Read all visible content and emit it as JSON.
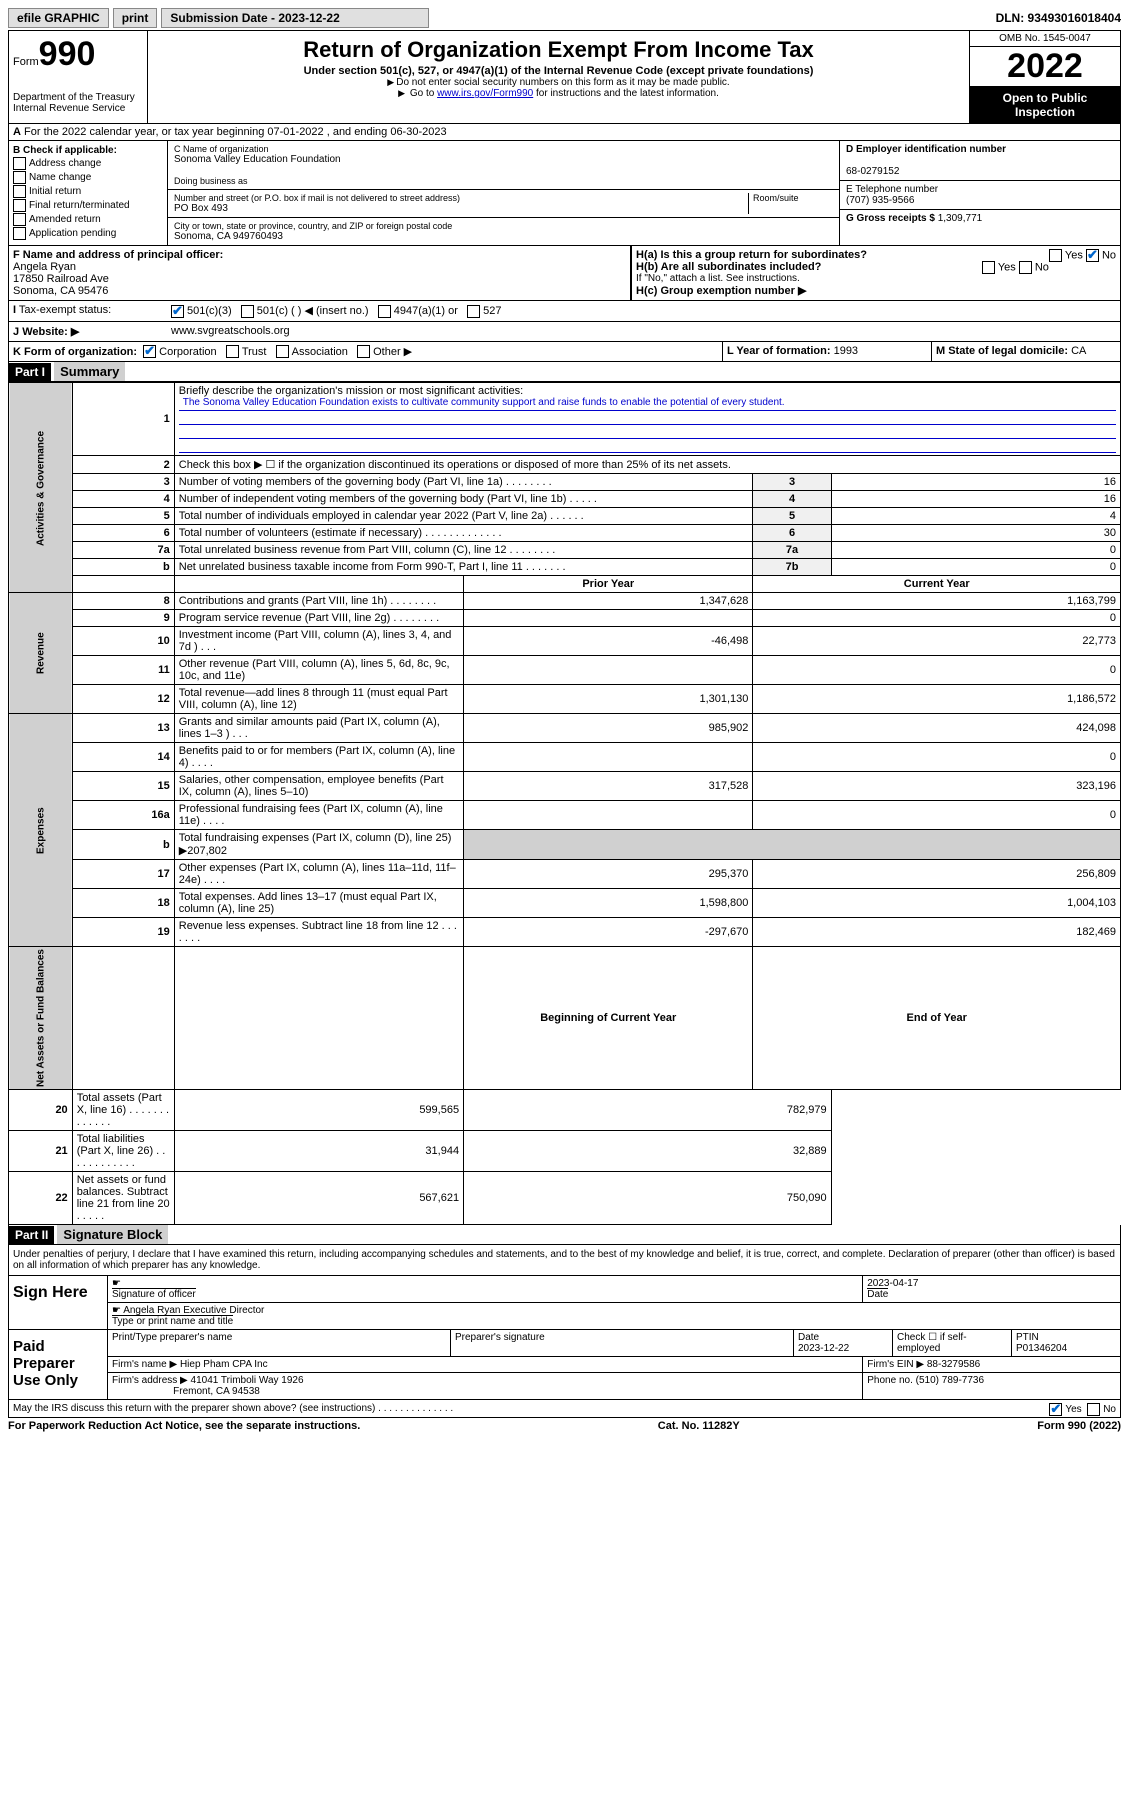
{
  "topbar": {
    "efile": "efile GRAPHIC",
    "print": "print",
    "sub_label": "Submission Date - 2023-12-22",
    "dln_label": "DLN: 93493016018404"
  },
  "header": {
    "form_word": "Form",
    "form_num": "990",
    "dept": "Department of the Treasury\nInternal Revenue Service",
    "title": "Return of Organization Exempt From Income Tax",
    "subtitle": "Under section 501(c), 527, or 4947(a)(1) of the Internal Revenue Code (except private foundations)",
    "note1": "Do not enter social security numbers on this form as it may be made public.",
    "note2_pre": "Go to ",
    "note2_link": "www.irs.gov/Form990",
    "note2_post": " for instructions and the latest information.",
    "omb": "OMB No. 1545-0047",
    "year": "2022",
    "open": "Open to Public Inspection"
  },
  "row_a": "For the 2022 calendar year, or tax year beginning 07-01-2022   , and ending 06-30-2023",
  "col_b": {
    "label": "B Check if applicable:",
    "items": [
      "Address change",
      "Name change",
      "Initial return",
      "Final return/terminated",
      "Amended return",
      "Application pending"
    ]
  },
  "col_c": {
    "name_label": "C Name of organization",
    "name": "Sonoma Valley Education Foundation",
    "dba_label": "Doing business as",
    "addr_label": "Number and street (or P.O. box if mail is not delivered to street address)",
    "room_label": "Room/suite",
    "addr": "PO Box 493",
    "city_label": "City or town, state or province, country, and ZIP or foreign postal code",
    "city": "Sonoma, CA  949760493"
  },
  "col_d": {
    "ein_label": "D Employer identification number",
    "ein": "68-0279152",
    "tel_label": "E Telephone number",
    "tel": "(707) 935-9566",
    "gross_label": "G Gross receipts $",
    "gross": "1,309,771"
  },
  "row_f": {
    "label": "F  Name and address of principal officer:",
    "name": "Angela Ryan",
    "addr1": "17850 Railroad Ave",
    "addr2": "Sonoma, CA  95476"
  },
  "row_h": {
    "ha": "H(a)  Is this a group return for subordinates?",
    "hb": "H(b)  Are all subordinates included?",
    "hb_note": "If \"No,\" attach a list. See instructions.",
    "hc": "H(c)  Group exemption number ▶",
    "yes": "Yes",
    "no": "No"
  },
  "row_i": {
    "label": "Tax-exempt status:",
    "opt1": "501(c)(3)",
    "opt2": "501(c) (   ) ◀ (insert no.)",
    "opt3": "4947(a)(1) or",
    "opt4": "527"
  },
  "row_j": {
    "label": "Website: ▶",
    "val": "www.svgreatschools.org"
  },
  "row_k": {
    "label": "K Form of organization:",
    "opts": [
      "Corporation",
      "Trust",
      "Association",
      "Other ▶"
    ],
    "l_label": "L Year of formation:",
    "l_val": "1993",
    "m_label": "M State of legal domicile:",
    "m_val": "CA"
  },
  "part1": {
    "hdr": "Part I",
    "title": "Summary",
    "line1_label": "Briefly describe the organization's mission or most significant activities:",
    "mission": "The Sonoma Valley Education Foundation exists to cultivate community support and raise funds to enable the potential of every student.",
    "line2": "Check this box ▶ ☐  if the organization discontinued its operations or disposed of more than 25% of its net assets.",
    "sections": {
      "gov": "Activities & Governance",
      "rev": "Revenue",
      "exp": "Expenses",
      "net": "Net Assets or Fund Balances"
    },
    "rows_gov": [
      {
        "n": "3",
        "d": "Number of voting members of the governing body (Part VI, line 1a)   .   .   .   .   .   .   .   .",
        "b": "3",
        "v": "16"
      },
      {
        "n": "4",
        "d": "Number of independent voting members of the governing body (Part VI, line 1b)   .   .   .   .   .",
        "b": "4",
        "v": "16"
      },
      {
        "n": "5",
        "d": "Total number of individuals employed in calendar year 2022 (Part V, line 2a)   .   .   .   .   .   .",
        "b": "5",
        "v": "4"
      },
      {
        "n": "6",
        "d": "Total number of volunteers (estimate if necessary)   .   .   .   .   .   .   .   .   .   .   .   .   .",
        "b": "6",
        "v": "30"
      },
      {
        "n": "7a",
        "d": "Total unrelated business revenue from Part VIII, column (C), line 12   .   .   .   .   .   .   .   .",
        "b": "7a",
        "v": "0"
      },
      {
        "n": "b",
        "d": "Net unrelated business taxable income from Form 990-T, Part I, line 11   .   .   .   .   .   .   .",
        "b": "7b",
        "v": "0"
      }
    ],
    "col_hdrs": {
      "prior": "Prior Year",
      "curr": "Current Year"
    },
    "rows_rev": [
      {
        "n": "8",
        "d": "Contributions and grants (Part VIII, line 1h)   .   .   .   .   .   .   .   .",
        "p": "1,347,628",
        "c": "1,163,799"
      },
      {
        "n": "9",
        "d": "Program service revenue (Part VIII, line 2g)   .   .   .   .   .   .   .   .",
        "p": "",
        "c": "0"
      },
      {
        "n": "10",
        "d": "Investment income (Part VIII, column (A), lines 3, 4, and 7d )   .   .   .",
        "p": "-46,498",
        "c": "22,773"
      },
      {
        "n": "11",
        "d": "Other revenue (Part VIII, column (A), lines 5, 6d, 8c, 9c, 10c, and 11e)",
        "p": "",
        "c": "0"
      },
      {
        "n": "12",
        "d": "Total revenue—add lines 8 through 11 (must equal Part VIII, column (A), line 12)",
        "p": "1,301,130",
        "c": "1,186,572"
      }
    ],
    "rows_exp": [
      {
        "n": "13",
        "d": "Grants and similar amounts paid (Part IX, column (A), lines 1–3 )   .   .   .",
        "p": "985,902",
        "c": "424,098"
      },
      {
        "n": "14",
        "d": "Benefits paid to or for members (Part IX, column (A), line 4)   .   .   .   .",
        "p": "",
        "c": "0"
      },
      {
        "n": "15",
        "d": "Salaries, other compensation, employee benefits (Part IX, column (A), lines 5–10)",
        "p": "317,528",
        "c": "323,196"
      },
      {
        "n": "16a",
        "d": "Professional fundraising fees (Part IX, column (A), line 11e)   .   .   .   .",
        "p": "",
        "c": "0"
      },
      {
        "n": "b",
        "d": "Total fundraising expenses (Part IX, column (D), line 25) ▶207,802",
        "p": "—",
        "c": "—"
      },
      {
        "n": "17",
        "d": "Other expenses (Part IX, column (A), lines 11a–11d, 11f–24e)   .   .   .   .",
        "p": "295,370",
        "c": "256,809"
      },
      {
        "n": "18",
        "d": "Total expenses. Add lines 13–17 (must equal Part IX, column (A), line 25)",
        "p": "1,598,800",
        "c": "1,004,103"
      },
      {
        "n": "19",
        "d": "Revenue less expenses. Subtract line 18 from line 12   .   .   .   .   .   .   .",
        "p": "-297,670",
        "c": "182,469"
      }
    ],
    "col_hdrs2": {
      "beg": "Beginning of Current Year",
      "end": "End of Year"
    },
    "rows_net": [
      {
        "n": "20",
        "d": "Total assets (Part X, line 16)   .   .   .   .   .   .   .   .   .   .   .   .   .",
        "p": "599,565",
        "c": "782,979"
      },
      {
        "n": "21",
        "d": "Total liabilities (Part X, line 26)   .   .   .   .   .   .   .   .   .   .   .   .",
        "p": "31,944",
        "c": "32,889"
      },
      {
        "n": "22",
        "d": "Net assets or fund balances. Subtract line 21 from line 20   .   .   .   .   .",
        "p": "567,621",
        "c": "750,090"
      }
    ]
  },
  "part2": {
    "hdr": "Part II",
    "title": "Signature Block",
    "decl": "Under penalties of perjury, I declare that I have examined this return, including accompanying schedules and statements, and to the best of my knowledge and belief, it is true, correct, and complete. Declaration of preparer (other than officer) is based on all information of which preparer has any knowledge.",
    "sign_here": "Sign Here",
    "sig_officer": "Signature of officer",
    "sig_date": "2023-04-17",
    "date_lbl": "Date",
    "officer_name": "Angela Ryan  Executive Director",
    "type_name": "Type or print name and title",
    "paid": "Paid Preparer Use Only",
    "prep_name_lbl": "Print/Type preparer's name",
    "prep_sig_lbl": "Preparer's signature",
    "prep_date_lbl": "Date",
    "prep_date": "2023-12-22",
    "check_lbl": "Check ☐ if self-employed",
    "ptin_lbl": "PTIN",
    "ptin": "P01346204",
    "firm_name_lbl": "Firm's name      ▶",
    "firm_name": "Hiep Pham CPA Inc",
    "firm_ein_lbl": "Firm's EIN ▶",
    "firm_ein": "88-3279586",
    "firm_addr_lbl": "Firm's address ▶",
    "firm_addr": "41041 Trimboli Way 1926",
    "firm_city": "Fremont, CA  94538",
    "phone_lbl": "Phone no.",
    "phone": "(510) 789-7736",
    "discuss": "May the IRS discuss this return with the preparer shown above? (see instructions)   .   .   .   .   .   .   .   .   .   .   .   .   .   .",
    "discuss_yes": "Yes",
    "discuss_no": "No"
  },
  "footer": {
    "left": "For Paperwork Reduction Act Notice, see the separate instructions.",
    "mid": "Cat. No. 11282Y",
    "right": "Form 990 (2022)"
  }
}
